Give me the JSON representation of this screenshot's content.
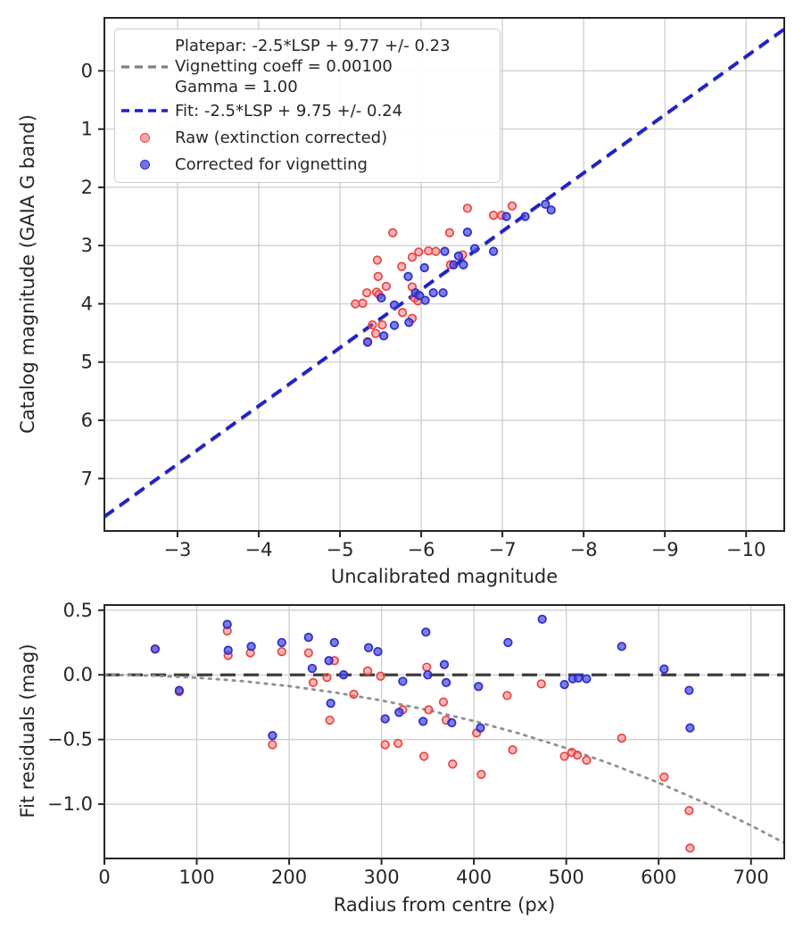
{
  "figure": {
    "background": "#ffffff",
    "colors": {
      "grid": "#cccccc",
      "spine": "#262626",
      "text": "#262626",
      "raw_stroke": "#e84545",
      "raw_fill": "rgba(250,95,95,0.45)",
      "corrected_stroke": "#2d2dc9",
      "corrected_fill": "rgba(75,75,225,0.72)",
      "fit_line": "#1f1fce",
      "platepar_line": "#808080",
      "zero_line": "#3d3d3d",
      "model_curve": "#909090"
    }
  },
  "chart_data": [
    {
      "id": "photometry-fit",
      "type": "scatter",
      "xlabel": "Uncalibrated magnitude",
      "ylabel": "Catalog magnitude (GAIA G band)",
      "xlim": [
        -2.1,
        -10.47
      ],
      "ylim": [
        -0.91,
        7.9
      ],
      "x_axis_inverted": true,
      "y_axis_inverted": true,
      "grid": true,
      "x_ticks": {
        "values": [
          -3,
          -4,
          -5,
          -6,
          -7,
          -8,
          -9,
          -10
        ],
        "labels": [
          "−3",
          "−4",
          "−5",
          "−6",
          "−7",
          "−8",
          "−9",
          "−10"
        ]
      },
      "y_ticks": {
        "values": [
          0,
          1,
          2,
          3,
          4,
          5,
          6,
          7
        ],
        "labels": [
          "0",
          "1",
          "2",
          "3",
          "4",
          "5",
          "6",
          "7"
        ]
      },
      "legend": {
        "position": "upper left",
        "entries": [
          {
            "marker": "dashed-line",
            "color": "#808080",
            "label_lines": [
              "Platepar: -2.5*LSP + 9.77 +/- 0.23",
              "Vignetting coeff = 0.00100",
              "Gamma = 1.00"
            ]
          },
          {
            "marker": "dashed-line",
            "color": "#1f1fce",
            "label_lines": [
              "Fit: -2.5*LSP + 9.75 +/- 0.24"
            ]
          },
          {
            "marker": "dot",
            "color": "#f15c5c",
            "label_lines": [
              "Raw (extinction corrected)"
            ]
          },
          {
            "marker": "dot",
            "color": "#4646dd",
            "label_lines": [
              "Corrected for vignetting"
            ]
          }
        ]
      },
      "lines": [
        {
          "name": "platepar-line",
          "style": "dashed",
          "color": "#808080",
          "width": 3.0,
          "dash": "13,8",
          "slope": 1.0,
          "intercept": 9.77
        },
        {
          "name": "fit-line",
          "style": "dashed",
          "color": "#1f1fce",
          "width": 3.5,
          "dash": "13,8",
          "slope": 1.0,
          "intercept": 9.75
        }
      ],
      "series": [
        {
          "name": "Raw (extinction corrected)",
          "stroke": "#e84545",
          "fill": "rgba(250,95,95,0.45)",
          "points": [
            [
              -6.57,
              2.36
            ],
            [
              -7.12,
              2.32
            ],
            [
              -6.89,
              2.48
            ],
            [
              -6.99,
              2.48
            ],
            [
              -5.65,
              2.78
            ],
            [
              -6.35,
              2.78
            ],
            [
              -5.46,
              3.25
            ],
            [
              -5.89,
              3.2
            ],
            [
              -5.97,
              3.11
            ],
            [
              -6.09,
              3.09
            ],
            [
              -6.18,
              3.1
            ],
            [
              -5.76,
              3.36
            ],
            [
              -5.47,
              3.53
            ],
            [
              -5.33,
              3.81
            ],
            [
              -5.45,
              3.8
            ],
            [
              -5.48,
              3.84
            ],
            [
              -5.57,
              3.7
            ],
            [
              -5.19,
              4.0
            ],
            [
              -5.28,
              3.99
            ],
            [
              -5.89,
              3.71
            ],
            [
              -5.92,
              3.9
            ],
            [
              -5.96,
              3.95
            ],
            [
              -5.77,
              4.15
            ],
            [
              -5.89,
              4.25
            ],
            [
              -5.4,
              4.36
            ],
            [
              -5.52,
              4.36
            ],
            [
              -5.44,
              4.51
            ],
            [
              -5.34,
              4.65
            ],
            [
              -6.36,
              3.33
            ],
            [
              -6.51,
              3.16
            ]
          ]
        },
        {
          "name": "Corrected for vignetting",
          "stroke": "#2d2dc9",
          "fill": "rgba(75,75,225,0.72)",
          "points": [
            [
              -7.05,
              2.5
            ],
            [
              -7.28,
              2.5
            ],
            [
              -7.53,
              2.29
            ],
            [
              -7.6,
              2.39
            ],
            [
              -6.57,
              2.77
            ],
            [
              -6.29,
              3.1
            ],
            [
              -6.66,
              3.05
            ],
            [
              -6.89,
              3.1
            ],
            [
              -6.46,
              3.18
            ],
            [
              -6.52,
              3.33
            ],
            [
              -6.4,
              3.33
            ],
            [
              -6.04,
              3.38
            ],
            [
              -5.84,
              3.53
            ],
            [
              -5.93,
              3.81
            ],
            [
              -5.98,
              3.86
            ],
            [
              -6.15,
              3.81
            ],
            [
              -6.27,
              3.81
            ],
            [
              -5.51,
              3.9
            ],
            [
              -5.67,
              4.02
            ],
            [
              -5.85,
              4.32
            ],
            [
              -5.67,
              4.37
            ],
            [
              -5.54,
              4.55
            ],
            [
              -6.05,
              3.94
            ],
            [
              -5.34,
              4.66
            ]
          ]
        }
      ]
    },
    {
      "id": "fit-residuals",
      "type": "scatter",
      "xlabel": "Radius from centre (px)",
      "ylabel": "Fit residuals (mag)",
      "xlim": [
        0,
        736
      ],
      "ylim": [
        0.54,
        -1.42
      ],
      "grid": true,
      "x_ticks": {
        "values": [
          0,
          100,
          200,
          300,
          400,
          500,
          600,
          700
        ],
        "labels": [
          "0",
          "100",
          "200",
          "300",
          "400",
          "500",
          "600",
          "700"
        ]
      },
      "y_ticks": {
        "values": [
          0.5,
          0.0,
          -0.5,
          -1.0
        ],
        "labels": [
          "0.5",
          "0.0",
          "−0.5",
          "−1.0"
        ]
      },
      "lines": [
        {
          "name": "zero-line",
          "style": "dashed",
          "color": "#3d3d3d",
          "width": 3.2,
          "dash": "17,9",
          "y": 0
        }
      ],
      "curves": [
        {
          "name": "vignetting-model",
          "style": "dotted",
          "color": "#909090",
          "width": 2.8,
          "dash": "2.5,6.5",
          "points": [
            [
              0,
              0
            ],
            [
              50,
              -0.005
            ],
            [
              100,
              -0.022
            ],
            [
              150,
              -0.049
            ],
            [
              200,
              -0.087
            ],
            [
              250,
              -0.137
            ],
            [
              300,
              -0.198
            ],
            [
              350,
              -0.272
            ],
            [
              400,
              -0.357
            ],
            [
              450,
              -0.455
            ],
            [
              500,
              -0.567
            ],
            [
              550,
              -0.693
            ],
            [
              600,
              -0.834
            ],
            [
              650,
              -0.991
            ],
            [
              700,
              -1.165
            ],
            [
              736,
              -1.299
            ]
          ]
        }
      ],
      "series": [
        {
          "name": "Raw (extinction corrected)",
          "stroke": "#e84545",
          "fill": "rgba(250,95,95,0.45)",
          "points": [
            [
              55,
              0.2
            ],
            [
              81,
              -0.13
            ],
            [
              133,
              0.34
            ],
            [
              134,
              0.15
            ],
            [
              158,
              0.17
            ],
            [
              182,
              -0.54
            ],
            [
              192,
              0.18
            ],
            [
              221,
              0.17
            ],
            [
              226,
              -0.06
            ],
            [
              241,
              -0.02
            ],
            [
              244,
              -0.35
            ],
            [
              249,
              0.11
            ],
            [
              270,
              -0.15
            ],
            [
              285,
              0.03
            ],
            [
              299,
              -0.01
            ],
            [
              304,
              -0.54
            ],
            [
              318,
              -0.53
            ],
            [
              323,
              -0.27
            ],
            [
              346,
              -0.63
            ],
            [
              349,
              0.06
            ],
            [
              351,
              -0.27
            ],
            [
              367,
              -0.21
            ],
            [
              370,
              -0.35
            ],
            [
              377,
              -0.69
            ],
            [
              403,
              -0.45
            ],
            [
              408,
              -0.77
            ],
            [
              436,
              -0.16
            ],
            [
              442,
              -0.58
            ],
            [
              473,
              -0.07
            ],
            [
              498,
              -0.63
            ],
            [
              506,
              -0.6
            ],
            [
              512,
              -0.62
            ],
            [
              522,
              -0.66
            ],
            [
              560,
              -0.49
            ],
            [
              606,
              -0.79
            ],
            [
              633,
              -1.05
            ],
            [
              634,
              -1.34
            ]
          ]
        },
        {
          "name": "Corrected for vignetting",
          "stroke": "#2d2dc9",
          "fill": "rgba(75,75,225,0.72)",
          "points": [
            [
              55,
              0.2
            ],
            [
              81,
              -0.12
            ],
            [
              133,
              0.39
            ],
            [
              134,
              0.19
            ],
            [
              159,
              0.22
            ],
            [
              182,
              -0.47
            ],
            [
              192,
              0.25
            ],
            [
              221,
              0.29
            ],
            [
              225,
              0.05
            ],
            [
              243,
              0.11
            ],
            [
              245,
              -0.22
            ],
            [
              249,
              0.25
            ],
            [
              259,
              0.0
            ],
            [
              286,
              0.21
            ],
            [
              296,
              0.18
            ],
            [
              304,
              -0.34
            ],
            [
              319,
              -0.29
            ],
            [
              323,
              -0.05
            ],
            [
              345,
              -0.36
            ],
            [
              348,
              0.33
            ],
            [
              350,
              0.0
            ],
            [
              368,
              0.08
            ],
            [
              370,
              -0.06
            ],
            [
              376,
              -0.37
            ],
            [
              405,
              -0.09
            ],
            [
              407,
              -0.41
            ],
            [
              437,
              0.25
            ],
            [
              474,
              0.43
            ],
            [
              498,
              -0.075
            ],
            [
              507,
              -0.03
            ],
            [
              513,
              -0.025
            ],
            [
              522,
              -0.03
            ],
            [
              560,
              0.22
            ],
            [
              606,
              0.045
            ],
            [
              633,
              -0.12
            ],
            [
              634,
              -0.41
            ]
          ]
        }
      ]
    }
  ]
}
